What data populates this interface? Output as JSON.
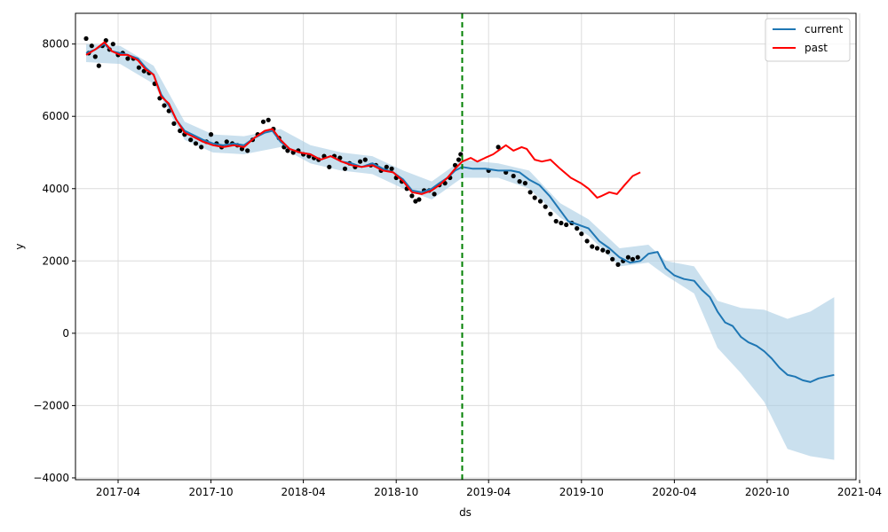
{
  "chart_data": {
    "type": "line",
    "title": "",
    "xlabel": "ds",
    "ylabel": "y",
    "ylim": [
      -4050,
      8850
    ],
    "xlim": [
      "2017-01-07",
      "2021-03-25"
    ],
    "grid": true,
    "legend_position": "top-right",
    "x_ticks": [
      "2017-04",
      "2017-10",
      "2018-04",
      "2018-10",
      "2019-04",
      "2019-10",
      "2020-04",
      "2020-10",
      "2021-04"
    ],
    "y_ticks": [
      -4000,
      -2000,
      0,
      2000,
      4000,
      6000,
      8000
    ],
    "cutoff_date": "2019-02-08",
    "colors": {
      "current": "#1f77b4",
      "past": "#ff0000",
      "band": "#a6cbe3",
      "observed": "#000000",
      "cutoff": "#008000",
      "grid": "#dcdcdc"
    },
    "series": [
      {
        "name": "current",
        "x": [
          "2017-01-28",
          "2017-02-15",
          "2017-03-05",
          "2017-03-20",
          "2017-04-05",
          "2017-04-20",
          "2017-05-10",
          "2017-05-25",
          "2017-06-10",
          "2017-06-25",
          "2017-07-10",
          "2017-07-25",
          "2017-08-10",
          "2017-08-25",
          "2017-09-15",
          "2017-10-05",
          "2017-10-25",
          "2017-11-15",
          "2017-12-05",
          "2017-12-25",
          "2018-01-15",
          "2018-01-30",
          "2018-02-15",
          "2018-03-05",
          "2018-03-25",
          "2018-04-15",
          "2018-05-05",
          "2018-05-25",
          "2018-06-15",
          "2018-07-05",
          "2018-07-25",
          "2018-08-15",
          "2018-09-05",
          "2018-09-25",
          "2018-10-15",
          "2018-11-01",
          "2018-11-20",
          "2018-12-10",
          "2018-12-25",
          "2019-01-10",
          "2019-01-25",
          "2019-02-08",
          "2019-03-01",
          "2019-03-25",
          "2019-04-20",
          "2019-05-15",
          "2019-06-01",
          "2019-06-20",
          "2019-07-10",
          "2019-07-30",
          "2019-08-20",
          "2019-09-05",
          "2019-09-25",
          "2019-10-15",
          "2019-11-05",
          "2019-11-25",
          "2019-12-15",
          "2020-01-05",
          "2020-01-25",
          "2020-02-10",
          "2020-02-28",
          "2020-03-15",
          "2020-04-01",
          "2020-04-20",
          "2020-05-10",
          "2020-05-25",
          "2020-06-10",
          "2020-06-25",
          "2020-07-10",
          "2020-07-25",
          "2020-08-10",
          "2020-08-25",
          "2020-09-10",
          "2020-09-25",
          "2020-10-10",
          "2020-10-25",
          "2020-11-10",
          "2020-11-25",
          "2020-12-10",
          "2020-12-25",
          "2021-01-10",
          "2021-01-25",
          "2021-02-10"
        ],
        "y": [
          7750,
          7850,
          8000,
          7800,
          7750,
          7700,
          7600,
          7350,
          7150,
          6600,
          6300,
          5900,
          5600,
          5500,
          5350,
          5250,
          5200,
          5250,
          5200,
          5400,
          5550,
          5600,
          5300,
          5100,
          5000,
          4950,
          4800,
          4900,
          4750,
          4700,
          4600,
          4700,
          4550,
          4450,
          4250,
          3950,
          3900,
          4000,
          4150,
          4300,
          4500,
          4600,
          4550,
          4550,
          4500,
          4500,
          4450,
          4250,
          4100,
          3800,
          3400,
          3100,
          3000,
          2900,
          2550,
          2350,
          2100,
          1950,
          2000,
          2200,
          2250,
          1800,
          1600,
          1500,
          1450,
          1200,
          1000,
          600,
          300,
          200,
          -100,
          -250,
          -350,
          -500,
          -700,
          -950,
          -1150,
          -1200,
          -1300,
          -1350,
          -1250,
          -1200,
          -1150
        ]
      },
      {
        "name": "past",
        "x": [
          "2017-01-28",
          "2017-02-15",
          "2017-03-05",
          "2017-03-20",
          "2017-04-05",
          "2017-04-20",
          "2017-05-10",
          "2017-05-25",
          "2017-06-10",
          "2017-06-25",
          "2017-07-10",
          "2017-07-25",
          "2017-08-10",
          "2017-08-25",
          "2017-09-15",
          "2017-10-05",
          "2017-10-25",
          "2017-11-15",
          "2017-12-05",
          "2017-12-25",
          "2018-01-15",
          "2018-01-30",
          "2018-02-15",
          "2018-03-05",
          "2018-03-25",
          "2018-04-15",
          "2018-05-05",
          "2018-05-25",
          "2018-06-15",
          "2018-07-05",
          "2018-07-25",
          "2018-08-15",
          "2018-09-05",
          "2018-09-25",
          "2018-10-15",
          "2018-11-01",
          "2018-11-20",
          "2018-12-10",
          "2018-12-25",
          "2019-01-10",
          "2019-01-25",
          "2019-02-08",
          "2019-02-25",
          "2019-03-10",
          "2019-03-25",
          "2019-04-10",
          "2019-04-25",
          "2019-05-05",
          "2019-05-20",
          "2019-06-05",
          "2019-06-15",
          "2019-07-01",
          "2019-07-15",
          "2019-08-01",
          "2019-08-20",
          "2019-09-10",
          "2019-09-30",
          "2019-10-15",
          "2019-11-01",
          "2019-11-10",
          "2019-11-25",
          "2019-12-10",
          "2019-12-25",
          "2020-01-10",
          "2020-01-25"
        ],
        "y": [
          7700,
          7850,
          8050,
          7800,
          7700,
          7700,
          7550,
          7300,
          7150,
          6550,
          6350,
          5900,
          5550,
          5450,
          5300,
          5200,
          5150,
          5200,
          5150,
          5400,
          5600,
          5650,
          5350,
          5100,
          5000,
          4950,
          4800,
          4900,
          4750,
          4650,
          4600,
          4650,
          4500,
          4450,
          4200,
          3900,
          3850,
          3950,
          4100,
          4300,
          4550,
          4750,
          4850,
          4750,
          4850,
          4950,
          5100,
          5200,
          5050,
          5150,
          5100,
          4800,
          4750,
          4800,
          4550,
          4300,
          4150,
          4000,
          3750,
          3800,
          3900,
          3850,
          4100,
          4350,
          4450
        ]
      }
    ],
    "band": {
      "x": [
        "2017-01-28",
        "2017-04-05",
        "2017-06-10",
        "2017-08-10",
        "2017-10-05",
        "2017-12-05",
        "2018-02-15",
        "2018-04-15",
        "2018-06-15",
        "2018-08-15",
        "2018-10-15",
        "2018-12-10",
        "2019-02-08",
        "2019-04-20",
        "2019-06-20",
        "2019-08-20",
        "2019-10-15",
        "2019-12-15",
        "2020-02-10",
        "2020-03-15",
        "2020-05-10",
        "2020-06-25",
        "2020-08-10",
        "2020-09-25",
        "2020-11-10",
        "2020-12-25",
        "2021-02-10"
      ],
      "upper": [
        8000,
        7950,
        7400,
        5850,
        5500,
        5450,
        5650,
        5200,
        5000,
        4900,
        4500,
        4200,
        4800,
        4700,
        4500,
        3600,
        3150,
        2350,
        2450,
        2000,
        1850,
        900,
        700,
        650,
        400,
        600,
        1000
      ],
      "lower": [
        7500,
        7450,
        6900,
        5350,
        5000,
        4950,
        5150,
        4700,
        4500,
        4400,
        4000,
        3700,
        4300,
        4300,
        4000,
        3200,
        2700,
        1850,
        1950,
        1600,
        1100,
        -400,
        -1100,
        -1900,
        -3200,
        -3400,
        -3500
      ]
    },
    "observed": {
      "name": "y",
      "x": [
        "2017-01-28",
        "2017-02-02",
        "2017-02-08",
        "2017-02-15",
        "2017-02-22",
        "2017-03-01",
        "2017-03-08",
        "2017-03-15",
        "2017-03-22",
        "2017-04-01",
        "2017-04-10",
        "2017-04-20",
        "2017-05-01",
        "2017-05-12",
        "2017-05-22",
        "2017-06-01",
        "2017-06-12",
        "2017-06-22",
        "2017-07-01",
        "2017-07-10",
        "2017-07-20",
        "2017-08-01",
        "2017-08-10",
        "2017-08-22",
        "2017-09-01",
        "2017-09-12",
        "2017-09-22",
        "2017-10-01",
        "2017-10-12",
        "2017-10-22",
        "2017-11-01",
        "2017-11-12",
        "2017-11-22",
        "2017-12-01",
        "2017-12-12",
        "2017-12-22",
        "2018-01-01",
        "2018-01-12",
        "2018-01-22",
        "2018-02-01",
        "2018-02-12",
        "2018-02-22",
        "2018-03-01",
        "2018-03-12",
        "2018-03-22",
        "2018-04-01",
        "2018-04-12",
        "2018-04-22",
        "2018-05-01",
        "2018-05-12",
        "2018-05-22",
        "2018-06-01",
        "2018-06-12",
        "2018-06-22",
        "2018-07-01",
        "2018-07-12",
        "2018-07-22",
        "2018-08-01",
        "2018-08-12",
        "2018-08-22",
        "2018-09-01",
        "2018-09-12",
        "2018-09-22",
        "2018-10-01",
        "2018-10-12",
        "2018-10-22",
        "2018-11-01",
        "2018-11-08",
        "2018-11-15",
        "2018-11-25",
        "2018-12-05",
        "2018-12-15",
        "2018-12-25",
        "2019-01-05",
        "2019-01-15",
        "2019-01-25",
        "2019-02-01",
        "2019-02-05",
        "2019-04-01",
        "2019-04-20",
        "2019-05-05",
        "2019-05-20",
        "2019-06-01",
        "2019-06-12",
        "2019-06-22",
        "2019-07-01",
        "2019-07-12",
        "2019-07-22",
        "2019-08-01",
        "2019-08-12",
        "2019-08-22",
        "2019-09-01",
        "2019-09-12",
        "2019-09-22",
        "2019-10-01",
        "2019-10-12",
        "2019-10-22",
        "2019-11-01",
        "2019-11-12",
        "2019-11-22",
        "2019-12-01",
        "2019-12-12",
        "2019-12-22",
        "2020-01-01",
        "2020-01-10",
        "2020-01-20"
      ],
      "y": [
        8150,
        7750,
        7950,
        7650,
        7400,
        7950,
        8100,
        7850,
        8000,
        7700,
        7750,
        7600,
        7600,
        7350,
        7250,
        7200,
        6900,
        6500,
        6300,
        6150,
        5800,
        5600,
        5500,
        5350,
        5250,
        5150,
        5300,
        5500,
        5250,
        5150,
        5300,
        5250,
        5200,
        5100,
        5050,
        5350,
        5500,
        5850,
        5900,
        5650,
        5400,
        5150,
        5050,
        5000,
        5050,
        4950,
        4900,
        4850,
        4800,
        4900,
        4600,
        4900,
        4850,
        4550,
        4700,
        4600,
        4750,
        4800,
        4650,
        4650,
        4500,
        4600,
        4550,
        4300,
        4200,
        4000,
        3800,
        3650,
        3700,
        3950,
        3950,
        3850,
        4100,
        4150,
        4300,
        4650,
        4800,
        4950,
        4500,
        5150,
        4450,
        4350,
        4200,
        4150,
        3900,
        3750,
        3650,
        3500,
        3300,
        3100,
        3050,
        3000,
        3050,
        2900,
        2750,
        2550,
        2400,
        2350,
        2300,
        2250,
        2050,
        1900,
        2000,
        2100,
        2050,
        2100
      ]
    }
  },
  "legend": {
    "items": [
      {
        "label": "current",
        "color": "#1f77b4"
      },
      {
        "label": "past",
        "color": "#ff0000"
      }
    ]
  }
}
